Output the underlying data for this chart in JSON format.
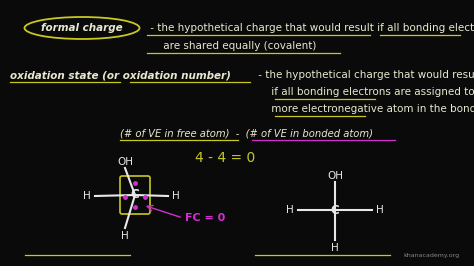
{
  "bg_color": "#0a0a0a",
  "fig_width": 4.74,
  "fig_height": 2.66,
  "dpi": 100,
  "formal_charge_text": "formal charge",
  "fc_rest": " - the hypothetical charge that would result if all bonding electrons",
  "fc_line2": "     are shared equally (covalent)",
  "ox_bold": "oxidation state (or oxidation number)",
  "ox_rest": " - the hypothetical charge that would result",
  "ox_line2": "     if all bonding electrons are assigned to the",
  "ox_line3": "     more electronegative atom in the bond (ionic)",
  "formula_line": "(# of VE in free atom)  -  (# of VE in bonded atom)",
  "calc_text": "4 - 4 = 0",
  "fc_label": "FC = 0",
  "watermark": "khanacademy.org",
  "text_color": "#e8e8d0",
  "yellow": "#c8c820",
  "magenta": "#d030d0",
  "white": "#e8e8e8"
}
